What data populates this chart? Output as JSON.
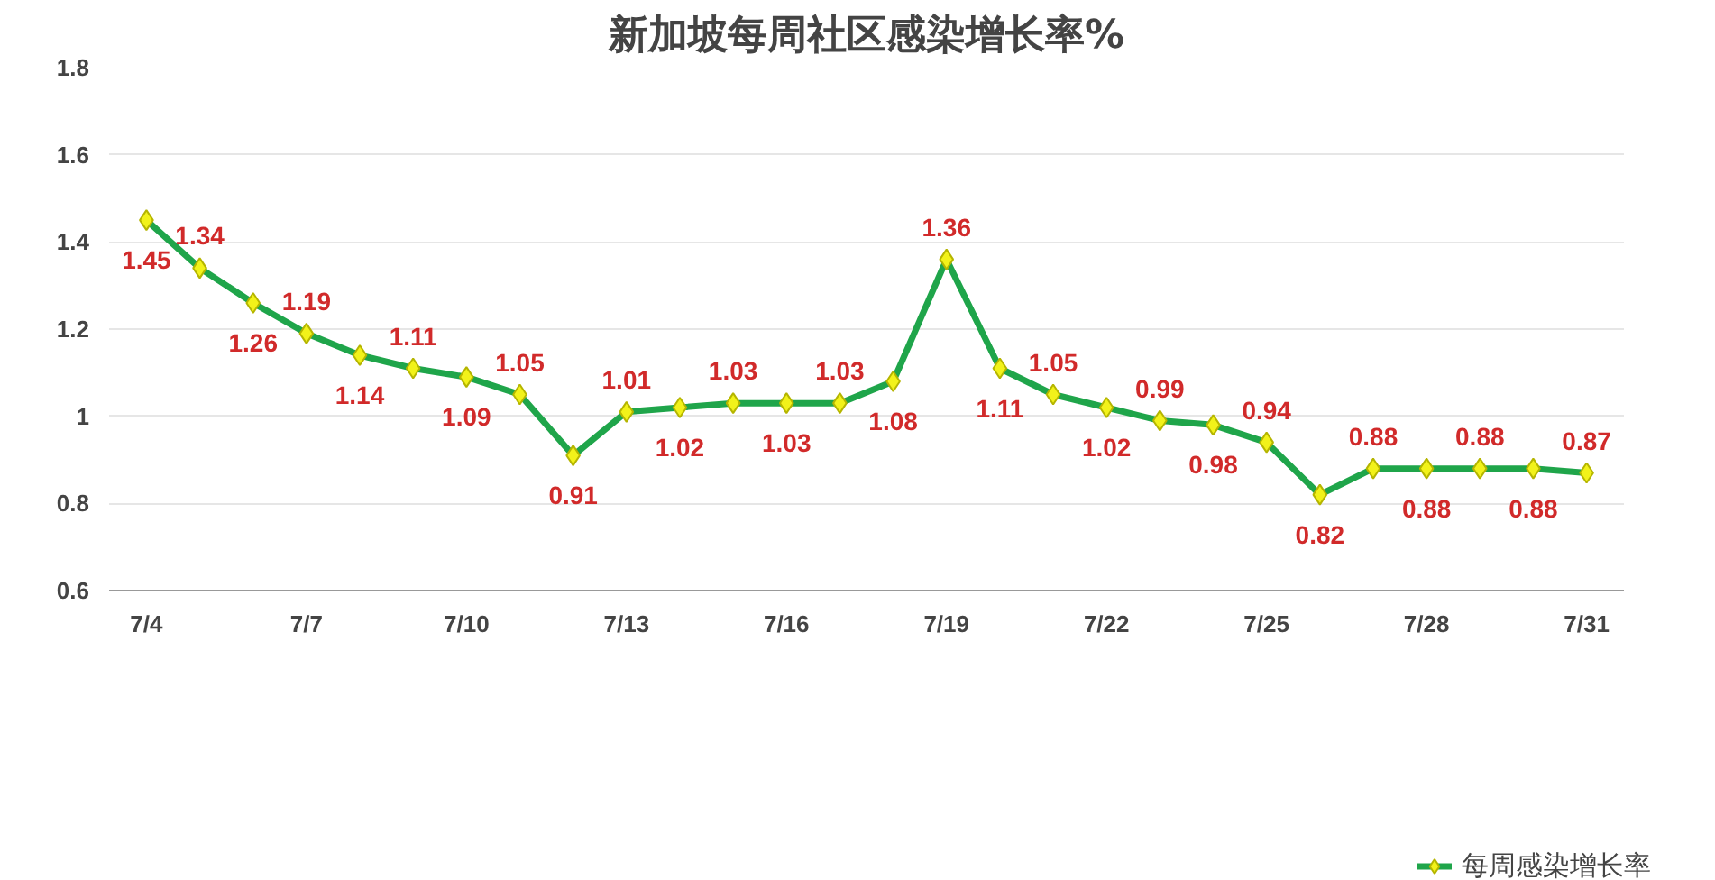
{
  "chart_data": {
    "type": "line",
    "title": "新加坡每周社区感染增长率%",
    "categories": [
      "7/4",
      null,
      null,
      "7/7",
      null,
      null,
      "7/10",
      null,
      null,
      "7/13",
      null,
      null,
      "7/16",
      null,
      null,
      "7/19",
      null,
      null,
      "7/22",
      null,
      null,
      "7/25",
      null,
      null,
      "7/28",
      null,
      null,
      "7/31"
    ],
    "series": [
      {
        "name": "每周感染增长率",
        "color": "#1fa54a",
        "values": [
          1.45,
          1.34,
          1.26,
          1.19,
          1.14,
          1.11,
          1.09,
          1.05,
          0.91,
          1.01,
          1.02,
          1.03,
          1.03,
          1.03,
          1.08,
          1.36,
          1.11,
          1.05,
          1.02,
          0.99,
          0.98,
          0.94,
          0.82,
          0.88,
          0.88,
          0.88,
          0.88,
          0.87
        ]
      }
    ],
    "ylim": [
      0.6,
      1.8
    ],
    "yticks": [
      0.6,
      0.8,
      1,
      1.2,
      1.4,
      1.6,
      1.8
    ],
    "grid": "y",
    "legend": "bottom",
    "marker": "diamond",
    "line_style": "solid",
    "data_labels": true
  }
}
